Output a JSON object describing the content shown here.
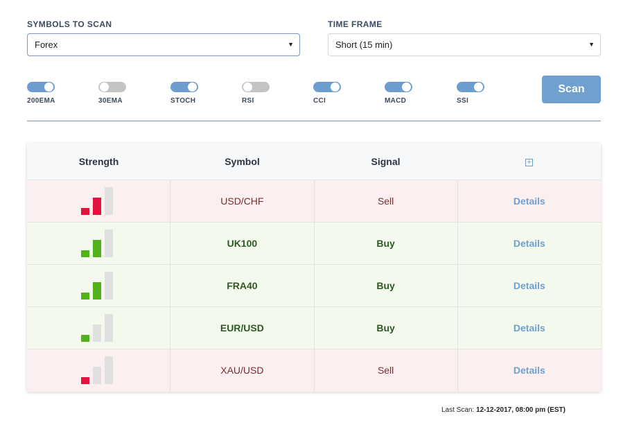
{
  "symbols": {
    "label": "SYMBOLS TO SCAN",
    "value": "Forex"
  },
  "timeframe": {
    "label": "TIME FRAME",
    "value": "Short (15 min)"
  },
  "indicators": [
    {
      "label": "200EMA",
      "on": true
    },
    {
      "label": "30EMA",
      "on": false
    },
    {
      "label": "STOCH",
      "on": true
    },
    {
      "label": "RSI",
      "on": false
    },
    {
      "label": "CCI",
      "on": true
    },
    {
      "label": "MACD",
      "on": true
    },
    {
      "label": "SSI",
      "on": true
    }
  ],
  "scan_button": "Scan",
  "table": {
    "headers": {
      "strength": "Strength",
      "symbol": "Symbol",
      "signal": "Signal"
    },
    "rows": [
      {
        "symbol": "USD/CHF",
        "signal": "Sell",
        "strength": 2,
        "details": "Details"
      },
      {
        "symbol": "UK100",
        "signal": "Buy",
        "strength": 2,
        "details": "Details"
      },
      {
        "symbol": "FRA40",
        "signal": "Buy",
        "strength": 2,
        "details": "Details"
      },
      {
        "symbol": "EUR/USD",
        "signal": "Buy",
        "strength": 1,
        "details": "Details"
      },
      {
        "symbol": "XAU/USD",
        "signal": "Sell",
        "strength": 1,
        "details": "Details"
      }
    ]
  },
  "last_scan": {
    "label": "Last Scan:",
    "value": "12-12-2017, 08:00 pm (EST)"
  },
  "colors": {
    "accent": "#6fa0cf",
    "sell_bar": "#e2143e",
    "buy_bar": "#52b21a"
  }
}
